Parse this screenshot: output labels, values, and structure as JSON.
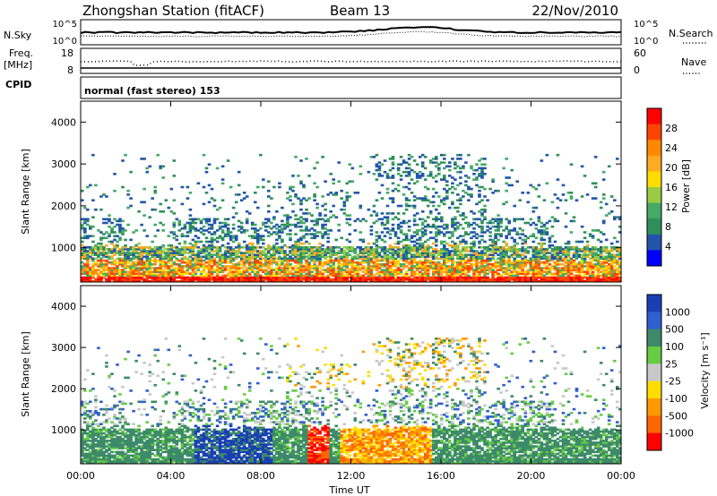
{
  "header": {
    "station": "Zhongshan Station (fitACF)",
    "beam": "Beam 13",
    "date": "22/Nov/2010"
  },
  "top_panels": {
    "nsky_label": "N.Sky",
    "nsky_ticks": [
      "10^5",
      "10^0"
    ],
    "nsearch_label": "N.Search",
    "nsearch_ticks": [
      "10^5",
      "10^0"
    ],
    "freq_label": "Freq.",
    "freq_unit": "[MHz]",
    "freq_ticks": [
      "18",
      "8"
    ],
    "nave_label": "Nave",
    "nave_ticks": [
      "60",
      "0"
    ],
    "cpid_label": "CPID",
    "cpid_text": "normal (fast stereo) 153"
  },
  "chart_data": [
    {
      "type": "heatmap",
      "name": "power",
      "ylabel": "Slant Range [km]",
      "y_ticks": [
        "4000",
        "3000",
        "2000",
        "1000"
      ],
      "x_ticks": [
        "00:00",
        "04:00",
        "08:00",
        "12:00",
        "16:00",
        "20:00",
        "00:00"
      ],
      "xlim": [
        0,
        24
      ],
      "ylim": [
        180,
        4500
      ],
      "colorbar": {
        "label": "Power [dB]",
        "ticks": [
          "28",
          "24",
          "20",
          "16",
          "12",
          "8",
          "4"
        ],
        "colors": [
          "#ff0000",
          "#ff4400",
          "#ff8800",
          "#ffaa22",
          "#ffdd00",
          "#99cc44",
          "#44aa66",
          "#2f8f5a",
          "#2255aa",
          "#0000ff"
        ]
      }
    },
    {
      "type": "heatmap",
      "name": "velocity",
      "ylabel": "Slant Range [km]",
      "y_ticks": [
        "4000",
        "3000",
        "2000",
        "1000"
      ],
      "x_ticks": [
        "00:00",
        "04:00",
        "08:00",
        "12:00",
        "16:00",
        "20:00",
        "00:00"
      ],
      "xlabel": "Time UT",
      "xlim": [
        0,
        24
      ],
      "ylim": [
        180,
        4500
      ],
      "colorbar": {
        "label": "Velocity [m s⁻¹]",
        "ticks": [
          "1000",
          "500",
          "100",
          "25",
          "-25",
          "-100",
          "-500",
          "-1000"
        ],
        "colors": [
          "#1a3fb5",
          "#2f5fd0",
          "#3d8a6a",
          "#66cc44",
          "#c8c8c8",
          "#ffdd00",
          "#ff9900",
          "#ff6600",
          "#ff0000"
        ]
      }
    }
  ]
}
